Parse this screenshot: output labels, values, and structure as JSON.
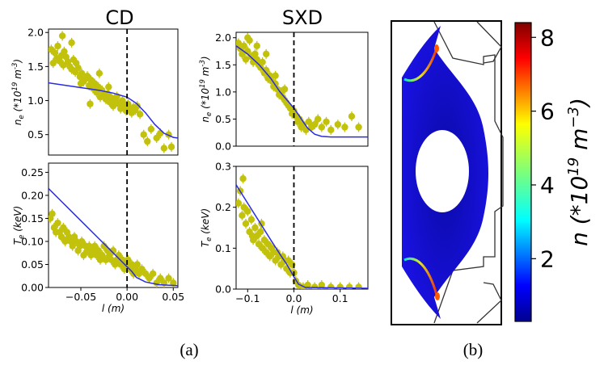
{
  "figure": {
    "titles": [
      "CD",
      "SXD"
    ],
    "captions": [
      "(a)",
      "(b)"
    ]
  },
  "colors": {
    "points": "#c2c20c",
    "model_line": "#2a2ae8",
    "separatrix": "#000000"
  },
  "chart_data": [
    {
      "id": "cd-density",
      "type": "scatter",
      "title": "CD",
      "xlabel": "",
      "ylabel": "n_e (*10^19 m^-3)",
      "ylabel_parts": [
        "n",
        "e",
        " (*10",
        "19",
        " m",
        "-3",
        ")"
      ],
      "xlim": [
        -0.085,
        0.055
      ],
      "ylim": [
        0.2,
        2.05
      ],
      "xticks": [],
      "yticks": [
        0.5,
        1.0,
        1.5,
        2.0
      ],
      "ytick_labels": [
        "0.5",
        "1.0",
        "1.5",
        "2.0"
      ],
      "vline_x": 0.0,
      "series": [
        {
          "kind": "points",
          "x": [
            -0.082,
            -0.08,
            -0.078,
            -0.076,
            -0.075,
            -0.073,
            -0.071,
            -0.069,
            -0.068,
            -0.066,
            -0.064,
            -0.062,
            -0.06,
            -0.058,
            -0.056,
            -0.055,
            -0.053,
            -0.051,
            -0.049,
            -0.047,
            -0.045,
            -0.043,
            -0.041,
            -0.039,
            -0.037,
            -0.035,
            -0.033,
            -0.031,
            -0.029,
            -0.027,
            -0.025,
            -0.023,
            -0.021,
            -0.019,
            -0.017,
            -0.015,
            -0.013,
            -0.011,
            -0.009,
            -0.007,
            -0.005,
            -0.003,
            -0.001,
            0.001,
            0.003,
            0.005,
            0.007,
            0.009,
            0.011,
            0.014,
            0.018,
            0.022,
            0.026,
            0.032,
            0.036,
            0.04,
            0.045,
            0.048,
            -0.07,
            -0.06,
            -0.05,
            -0.04,
            -0.03,
            -0.02
          ],
          "y": [
            1.75,
            1.55,
            1.7,
            1.62,
            1.8,
            1.58,
            1.66,
            1.52,
            1.72,
            1.64,
            1.57,
            1.5,
            1.46,
            1.6,
            1.42,
            1.55,
            1.48,
            1.35,
            1.4,
            1.28,
            1.32,
            1.36,
            1.22,
            1.3,
            1.18,
            1.25,
            1.12,
            1.2,
            1.05,
            1.15,
            1.08,
            1.02,
            1.1,
            0.98,
            1.04,
            0.92,
            1.0,
            1.06,
            0.95,
            0.88,
            1.0,
            0.92,
            0.85,
            0.95,
            0.88,
            0.82,
            0.9,
            0.86,
            0.92,
            0.8,
            0.5,
            0.4,
            0.58,
            0.45,
            0.52,
            0.3,
            0.5,
            0.32,
            1.95,
            1.85,
            1.25,
            0.95,
            1.4,
            1.2
          ]
        },
        {
          "kind": "line",
          "x": [
            -0.085,
            -0.07,
            -0.05,
            -0.03,
            -0.015,
            0.0,
            0.01,
            0.02,
            0.03,
            0.04,
            0.05,
            0.055
          ],
          "y": [
            1.26,
            1.23,
            1.19,
            1.15,
            1.11,
            1.05,
            0.96,
            0.82,
            0.65,
            0.52,
            0.46,
            0.45
          ]
        }
      ]
    },
    {
      "id": "cd-temperature",
      "type": "scatter",
      "title": "",
      "xlabel": "l (m)",
      "ylabel": "T_e (keV)",
      "ylabel_parts": [
        "T",
        "e",
        " (keV)"
      ],
      "xlim": [
        -0.085,
        0.055
      ],
      "ylim": [
        0.0,
        0.27
      ],
      "xticks": [
        -0.05,
        0.0,
        0.05
      ],
      "xtick_labels": [
        "−0.05",
        "0.00",
        "0.05"
      ],
      "yticks": [
        0.0,
        0.05,
        0.1,
        0.15,
        0.2,
        0.25
      ],
      "ytick_labels": [
        "0.00",
        "0.05",
        "0.10",
        "0.15",
        "0.20",
        "0.25"
      ],
      "vline_x": 0.0,
      "series": [
        {
          "kind": "points",
          "x": [
            -0.083,
            -0.081,
            -0.079,
            -0.077,
            -0.075,
            -0.073,
            -0.071,
            -0.069,
            -0.067,
            -0.065,
            -0.063,
            -0.061,
            -0.059,
            -0.057,
            -0.055,
            -0.053,
            -0.051,
            -0.049,
            -0.047,
            -0.045,
            -0.043,
            -0.041,
            -0.039,
            -0.037,
            -0.035,
            -0.033,
            -0.031,
            -0.029,
            -0.027,
            -0.025,
            -0.023,
            -0.021,
            -0.019,
            -0.017,
            -0.015,
            -0.013,
            -0.011,
            -0.009,
            -0.007,
            -0.005,
            -0.003,
            -0.001,
            0.001,
            0.003,
            0.005,
            0.007,
            0.009,
            0.011,
            0.013,
            0.016,
            0.02,
            0.024,
            0.028,
            0.032,
            0.036,
            0.04,
            0.045,
            0.05
          ],
          "y": [
            0.15,
            0.16,
            0.13,
            0.12,
            0.14,
            0.12,
            0.11,
            0.13,
            0.1,
            0.12,
            0.11,
            0.1,
            0.09,
            0.11,
            0.1,
            0.08,
            0.09,
            0.1,
            0.07,
            0.09,
            0.08,
            0.09,
            0.07,
            0.08,
            0.09,
            0.07,
            0.08,
            0.06,
            0.07,
            0.09,
            0.06,
            0.08,
            0.07,
            0.06,
            0.08,
            0.05,
            0.06,
            0.07,
            0.05,
            0.06,
            0.04,
            0.05,
            0.06,
            0.04,
            0.05,
            0.03,
            0.04,
            0.05,
            0.03,
            0.04,
            0.03,
            0.02,
            0.03,
            0.01,
            0.02,
            0.01,
            0.02,
            0.01
          ]
        },
        {
          "kind": "line",
          "x": [
            -0.085,
            -0.07,
            -0.05,
            -0.03,
            -0.015,
            -0.005,
            0.0,
            0.005,
            0.01,
            0.02,
            0.035,
            0.055
          ],
          "y": [
            0.215,
            0.185,
            0.145,
            0.105,
            0.075,
            0.055,
            0.045,
            0.035,
            0.022,
            0.012,
            0.006,
            0.004
          ]
        }
      ]
    },
    {
      "id": "sxd-density",
      "type": "scatter",
      "title": "SXD",
      "xlabel": "",
      "ylabel": "n_e (*10^19 m^-3)",
      "ylabel_parts": [
        "n",
        "e",
        " (*10",
        "19",
        " m",
        "-3",
        ")"
      ],
      "xlim": [
        -0.125,
        0.16
      ],
      "ylim": [
        0.0,
        2.1
      ],
      "xticks": [],
      "yticks": [
        0.0,
        0.5,
        1.0,
        1.5,
        2.0
      ],
      "ytick_labels": [
        "0.0",
        "0.5",
        "1.0",
        "1.5",
        "2.0"
      ],
      "vline_x": 0.0,
      "series": [
        {
          "kind": "points",
          "x": [
            -0.12,
            -0.116,
            -0.112,
            -0.108,
            -0.104,
            -0.1,
            -0.096,
            -0.092,
            -0.088,
            -0.084,
            -0.08,
            -0.076,
            -0.072,
            -0.068,
            -0.064,
            -0.06,
            -0.056,
            -0.052,
            -0.048,
            -0.044,
            -0.04,
            -0.036,
            -0.032,
            -0.028,
            -0.024,
            -0.02,
            -0.016,
            -0.012,
            -0.008,
            -0.004,
            0.0,
            0.004,
            0.008,
            0.012,
            0.016,
            0.02,
            0.026,
            0.032,
            0.038,
            0.045,
            0.052,
            0.06,
            0.07,
            0.08,
            0.095,
            0.11,
            0.125,
            0.14,
            -0.1,
            -0.08,
            -0.06,
            -0.04,
            -0.02
          ],
          "y": [
            1.9,
            1.8,
            1.7,
            1.85,
            1.6,
            1.75,
            1.95,
            1.65,
            1.55,
            1.7,
            1.6,
            1.5,
            1.45,
            1.55,
            1.35,
            1.4,
            1.25,
            1.3,
            1.2,
            1.1,
            1.15,
            1.05,
            0.95,
            1.0,
            0.9,
            0.85,
            0.8,
            0.75,
            0.7,
            0.6,
            0.65,
            0.55,
            0.45,
            0.5,
            0.35,
            0.4,
            0.3,
            0.45,
            0.35,
            0.4,
            0.5,
            0.35,
            0.45,
            0.3,
            0.4,
            0.35,
            0.55,
            0.35,
            2.0,
            1.85,
            1.7,
            1.3,
            1.05
          ]
        },
        {
          "kind": "line",
          "x": [
            -0.125,
            -0.1,
            -0.075,
            -0.05,
            -0.03,
            -0.01,
            0.0,
            0.01,
            0.02,
            0.03,
            0.045,
            0.06,
            0.08,
            0.16
          ],
          "y": [
            1.85,
            1.7,
            1.5,
            1.25,
            1.0,
            0.8,
            0.7,
            0.58,
            0.45,
            0.33,
            0.22,
            0.18,
            0.17,
            0.17
          ]
        }
      ]
    },
    {
      "id": "sxd-temperature",
      "type": "scatter",
      "title": "",
      "xlabel": "l (m)",
      "ylabel": "T_e (keV)",
      "ylabel_parts": [
        "T",
        "e",
        " (keV)"
      ],
      "xlim": [
        -0.125,
        0.16
      ],
      "ylim": [
        0.0,
        0.3
      ],
      "xticks": [
        -0.1,
        0.0,
        0.1
      ],
      "xtick_labels": [
        "−0.1",
        "0.0",
        "0.1"
      ],
      "yticks": [
        0.0,
        0.1,
        0.2,
        0.3
      ],
      "ytick_labels": [
        "0.0",
        "0.1",
        "0.2",
        "0.3"
      ],
      "vline_x": 0.0,
      "series": [
        {
          "kind": "points",
          "x": [
            -0.12,
            -0.116,
            -0.112,
            -0.108,
            -0.104,
            -0.1,
            -0.096,
            -0.092,
            -0.088,
            -0.084,
            -0.08,
            -0.076,
            -0.072,
            -0.068,
            -0.064,
            -0.06,
            -0.056,
            -0.052,
            -0.048,
            -0.044,
            -0.04,
            -0.036,
            -0.032,
            -0.028,
            -0.024,
            -0.02,
            -0.016,
            -0.012,
            -0.008,
            -0.004,
            0.0,
            0.004,
            0.01,
            0.02,
            0.03,
            0.045,
            0.06,
            0.08,
            0.1,
            0.12,
            0.14,
            -0.11,
            -0.09,
            -0.07
          ],
          "y": [
            0.21,
            0.24,
            0.18,
            0.2,
            0.16,
            0.19,
            0.14,
            0.17,
            0.12,
            0.15,
            0.13,
            0.11,
            0.14,
            0.1,
            0.12,
            0.09,
            0.11,
            0.08,
            0.1,
            0.09,
            0.07,
            0.09,
            0.08,
            0.06,
            0.08,
            0.07,
            0.05,
            0.07,
            0.04,
            0.06,
            0.04,
            0.02,
            0.01,
            0.005,
            0.01,
            0.005,
            0.01,
            0.005,
            0.005,
            0.005,
            0.005,
            0.27,
            0.13,
            0.16
          ]
        },
        {
          "kind": "line",
          "x": [
            -0.125,
            -0.1,
            -0.075,
            -0.05,
            -0.03,
            -0.015,
            0.0,
            0.01,
            0.025,
            0.16
          ],
          "y": [
            0.255,
            0.21,
            0.165,
            0.12,
            0.085,
            0.06,
            0.03,
            0.012,
            0.004,
            0.002
          ]
        }
      ]
    },
    {
      "id": "density-map",
      "type": "heatmap",
      "title": "",
      "colorbar": {
        "label_parts": [
          "n",
          " (*10",
          "19",
          " m",
          "−3",
          ")"
        ],
        "min": 0.3,
        "max": 8.4,
        "ticks": [
          2,
          4,
          6,
          8
        ],
        "tick_labels": [
          "2",
          "4",
          "6",
          "8"
        ],
        "colormap": "jet"
      }
    }
  ]
}
